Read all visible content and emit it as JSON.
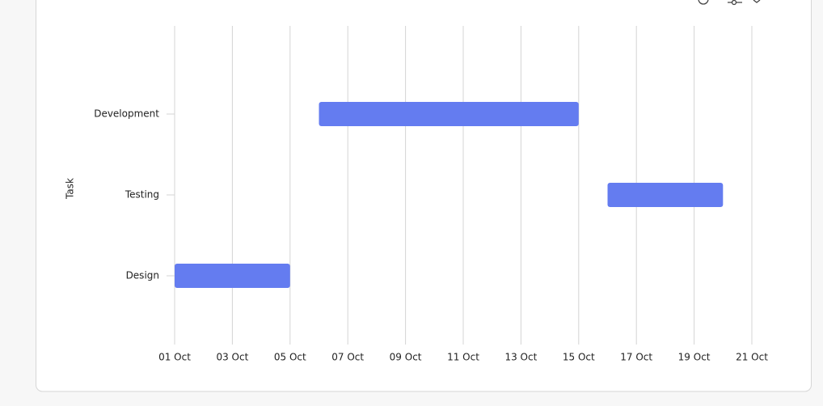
{
  "chart_data": {
    "type": "gantt",
    "y_label": "Task",
    "categories": [
      "Design",
      "Testing",
      "Development"
    ],
    "start": [
      1,
      16,
      6
    ],
    "end": [
      5,
      20,
      15
    ],
    "color": "#647cf0",
    "xlim": [
      1,
      21
    ],
    "xticks": [
      {
        "value": 1,
        "label": "01 Oct"
      },
      {
        "value": 3,
        "label": "03 Oct"
      },
      {
        "value": 5,
        "label": "05 Oct"
      },
      {
        "value": 7,
        "label": "07 Oct"
      },
      {
        "value": 9,
        "label": "09 Oct"
      },
      {
        "value": 11,
        "label": "11 Oct"
      },
      {
        "value": 13,
        "label": "13 Oct"
      },
      {
        "value": 15,
        "label": "15 Oct"
      },
      {
        "value": 17,
        "label": "17 Oct"
      },
      {
        "value": 19,
        "label": "19 Oct"
      },
      {
        "value": 21,
        "label": "21 Oct"
      }
    ],
    "grid": true
  }
}
